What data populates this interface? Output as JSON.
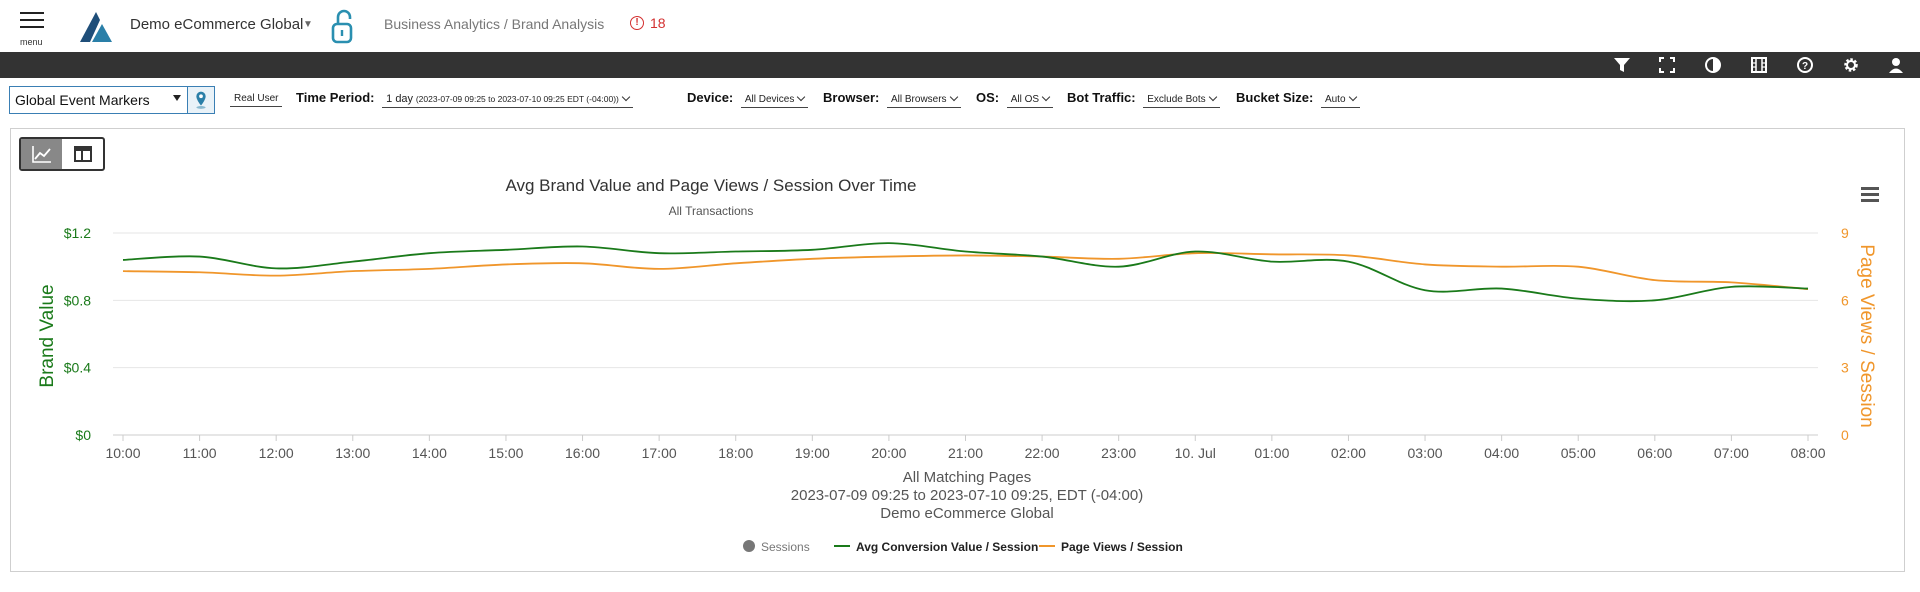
{
  "header": {
    "menu_label": "menu",
    "org_name": "Demo eCommerce Global",
    "breadcrumb": "Business Analytics / Brand Analysis",
    "alert_count": "18"
  },
  "toolbar": {
    "icons": [
      "filter-icon",
      "fullscreen-icon",
      "contrast-icon",
      "film-icon",
      "help-icon",
      "gear-icon",
      "user-icon"
    ]
  },
  "filters": {
    "event_markers": "Global Event Markers",
    "real_user": "Real User",
    "time_period_label": "Time Period:",
    "time_period_value": "1 day",
    "time_period_range": "(2023-07-09 09:25 to 2023-07-10 09:25 EDT (-04:00))",
    "device_label": "Device:",
    "device_value": "All Devices",
    "browser_label": "Browser:",
    "browser_value": "All Browsers",
    "os_label": "OS:",
    "os_value": "All OS",
    "bot_label": "Bot Traffic:",
    "bot_value": "Exclude Bots",
    "bucket_label": "Bucket Size:",
    "bucket_value": "Auto"
  },
  "chart_data": {
    "type": "line",
    "title": "Avg Brand Value and Page Views / Session Over Time",
    "subtitle": "All Transactions",
    "x": [
      "10:00",
      "11:00",
      "12:00",
      "13:00",
      "14:00",
      "15:00",
      "16:00",
      "17:00",
      "18:00",
      "19:00",
      "20:00",
      "21:00",
      "22:00",
      "23:00",
      "10. Jul",
      "01:00",
      "02:00",
      "03:00",
      "04:00",
      "05:00",
      "06:00",
      "07:00",
      "08:00"
    ],
    "y_left_label": "Brand Value",
    "y_left_ticks": [
      "$0",
      "$0.4",
      "$0.8",
      "$1.2"
    ],
    "y_left_range": [
      0,
      1.2
    ],
    "y_right_label": "Page Views / Session",
    "y_right_ticks": [
      "0",
      "3",
      "6",
      "9"
    ],
    "y_right_range": [
      0,
      9
    ],
    "series": [
      {
        "name": "Avg Conversion Value / Session",
        "axis": "left",
        "color": "#1a7a1a",
        "values": [
          1.04,
          1.06,
          0.99,
          1.03,
          1.08,
          1.1,
          1.12,
          1.08,
          1.09,
          1.1,
          1.14,
          1.09,
          1.06,
          1.0,
          1.09,
          1.03,
          1.03,
          0.86,
          0.87,
          0.81,
          0.8,
          0.88,
          0.87
        ]
      },
      {
        "name": "Page Views / Session",
        "axis": "right",
        "color": "#f0962b",
        "values": [
          7.3,
          7.25,
          7.1,
          7.3,
          7.4,
          7.6,
          7.65,
          7.4,
          7.65,
          7.85,
          7.95,
          8.0,
          7.95,
          7.85,
          8.1,
          8.05,
          8.0,
          7.6,
          7.5,
          7.5,
          6.9,
          6.8,
          6.5
        ]
      }
    ],
    "bottom_text": [
      "All Matching Pages",
      "2023-07-09 09:25 to 2023-07-10 09:25, EDT (-04:00)",
      "Demo eCommerce Global"
    ],
    "legend": [
      {
        "name": "Sessions",
        "color": "#777777",
        "shape": "circle"
      },
      {
        "name": "Avg Conversion Value / Session",
        "color": "#1a7a1a",
        "shape": "line"
      },
      {
        "name": "Page Views / Session",
        "color": "#f0962b",
        "shape": "line"
      }
    ],
    "grid": true,
    "legend_position": "bottom"
  }
}
